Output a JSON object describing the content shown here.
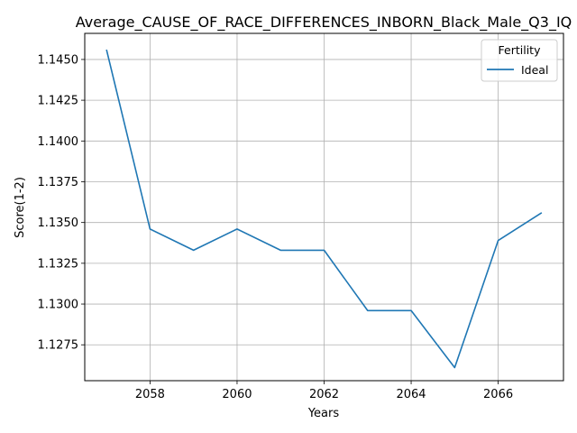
{
  "chart_data": {
    "type": "line",
    "title": "Average_CAUSE_OF_RACE_DIFFERENCES_INBORN_Black_Male_Q3_IQ",
    "xlabel": "Years",
    "ylabel": "Score(1-2)",
    "xlim": [
      2056.5,
      2067.5
    ],
    "ylim": [
      1.1253,
      1.1466
    ],
    "xticks": [
      2058,
      2060,
      2062,
      2064,
      2066
    ],
    "yticks": [
      1.1275,
      1.13,
      1.1325,
      1.135,
      1.1375,
      1.14,
      1.1425,
      1.145
    ],
    "ytick_labels": [
      "1.1275",
      "1.1300",
      "1.1325",
      "1.1350",
      "1.1375",
      "1.1400",
      "1.1425",
      "1.1450"
    ],
    "grid": true,
    "legend": {
      "title": "Fertility",
      "placement": "top-right"
    },
    "x": [
      2057,
      2058,
      2059,
      2060,
      2061,
      2062,
      2063,
      2064,
      2065,
      2066,
      2067
    ],
    "series": [
      {
        "name": "Ideal",
        "color": "#1f77b4",
        "values": [
          1.1456,
          1.1346,
          1.1333,
          1.1346,
          1.1333,
          1.1333,
          1.1296,
          1.1296,
          1.1261,
          1.1339,
          1.1356
        ]
      }
    ]
  }
}
